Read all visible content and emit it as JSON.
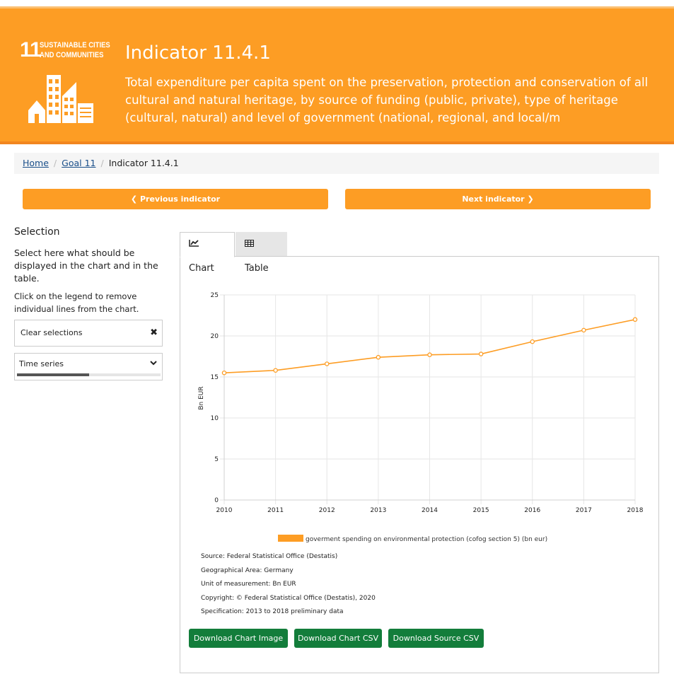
{
  "goal": {
    "number": "11",
    "name_line1": "SUSTAINABLE CITIES",
    "name_line2": "AND COMMUNITIES"
  },
  "header": {
    "title": "Indicator 11.4.1",
    "description": "Total expenditure per capita spent on the preservation, protection and conservation of all cultural and natural heritage, by source of funding (public, private), type of heritage (cultural, natural) and level of government (national, regional, and local/m"
  },
  "breadcrumb": {
    "home": "Home",
    "goal": "Goal 11",
    "current": "Indicator 11.4.1"
  },
  "nav": {
    "prev": "Previous indicator",
    "next": "Next indicator"
  },
  "sidebar": {
    "title": "Selection",
    "desc": "Select here what should be displayed in the chart and in the table.",
    "desc2": "Click on the legend to remove individual lines from the chart.",
    "clear_label": "Clear selections",
    "time_series_label": "Time series",
    "time_series_progress": 0.5
  },
  "tabs": {
    "chart": "Chart",
    "table": "Table"
  },
  "chart_data": {
    "type": "line",
    "x": [
      2010,
      2011,
      2012,
      2013,
      2014,
      2015,
      2016,
      2017,
      2018
    ],
    "series": [
      {
        "name": "goverment spending on environmental protection (cofog section 5) (bn eur)",
        "values": [
          15.5,
          15.8,
          16.6,
          17.4,
          17.7,
          17.8,
          19.3,
          20.7,
          22.0
        ]
      }
    ],
    "ylabel": "Bn EUR",
    "ylim": [
      0,
      25
    ],
    "yticks": [
      0,
      5,
      10,
      15,
      20,
      25
    ],
    "color": "#fd9d24",
    "grid": true,
    "legend": "bottom"
  },
  "meta": {
    "source": "Source: Federal Statistical Office (Destatis)",
    "area": "Geographical Area: Germany",
    "unit": "Unit of measurement: Bn EUR",
    "copyright": "Copyright: © Federal Statistical Office (Destatis), 2020",
    "spec": "Specification: 2013 to 2018 preliminary data"
  },
  "downloads": {
    "image": "Download Chart Image",
    "chart_csv": "Download Chart CSV",
    "source_csv": "Download Source CSV"
  }
}
